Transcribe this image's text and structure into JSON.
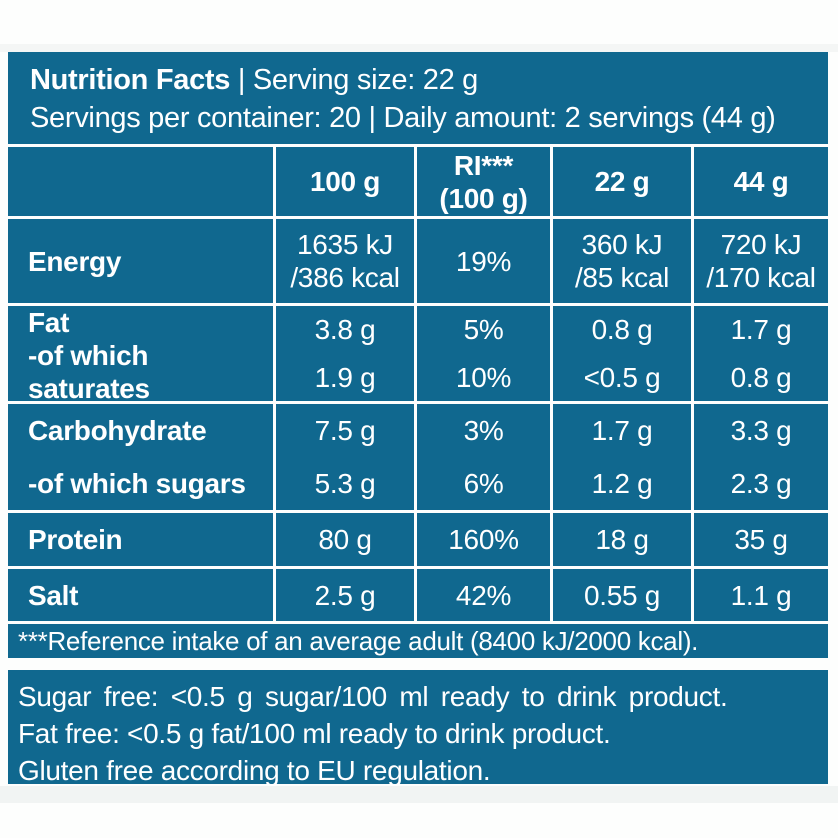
{
  "colors": {
    "teal": "#10688F",
    "text_on_teal": "#FFFFFF"
  },
  "header": {
    "title": "Nutrition Facts",
    "serving": "| Serving size: 22 g",
    "line2": "Servings per container: 20 | Daily amount: 2 servings (44 g)"
  },
  "columns": {
    "per100": "100 g",
    "ri_line1": "RI***",
    "ri_line2": "(100 g)",
    "per22": "22 g",
    "per44": "44 g"
  },
  "rows": {
    "energy": {
      "label": "Energy",
      "per100_l1": "1635 kJ",
      "per100_l2": "/386 kcal",
      "ri": "19%",
      "per22_l1": "360 kJ",
      "per22_l2": "/85 kcal",
      "per44_l1": "720 kJ",
      "per44_l2": "/170 kcal"
    },
    "fat": {
      "label": "Fat",
      "per100": "3.8 g",
      "ri": "5%",
      "per22": "0.8 g",
      "per44": "1.7 g"
    },
    "saturates": {
      "label": "-of which saturates",
      "per100": "1.9 g",
      "ri": "10%",
      "per22": "<0.5 g",
      "per44": "0.8 g"
    },
    "carbohydrate": {
      "label": "Carbohydrate",
      "per100": "7.5 g",
      "ri": "3%",
      "per22": "1.7 g",
      "per44": "3.3 g"
    },
    "sugars": {
      "label": "-of which sugars",
      "per100": "5.3 g",
      "ri": "6%",
      "per22": "1.2 g",
      "per44": "2.3 g"
    },
    "protein": {
      "label": "Protein",
      "per100": "80 g",
      "ri": "160%",
      "per22": "18 g",
      "per44": "35 g"
    },
    "salt": {
      "label": "Salt",
      "per100": "2.5 g",
      "ri": "42%",
      "per22": "0.55 g",
      "per44": "1.1 g"
    }
  },
  "footnote": "***Reference intake of an average adult (8400 kJ/2000 kcal).",
  "claims": {
    "sugar_free": "Sugar free: <0.5 g sugar/100 ml ready to drink product.",
    "fat_free": "Fat free: <0.5 g fat/100 ml ready to drink product.",
    "gluten_free": "Gluten free according to EU regulation."
  }
}
